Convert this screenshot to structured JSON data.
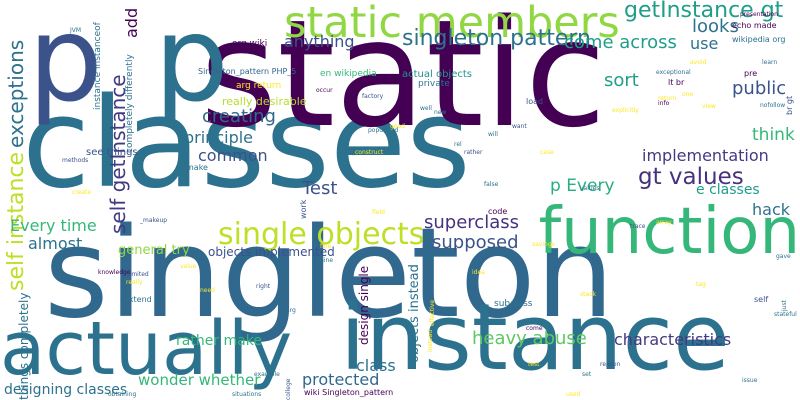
{
  "words": [
    {
      "text": "classes",
      "color": "#2c728e"
    },
    {
      "text": "singleton",
      "color": "#31688e"
    },
    {
      "text": "static",
      "color": "#440154"
    },
    {
      "text": "p",
      "color": "#3b528b"
    },
    {
      "text": "p",
      "color": "#2c728e"
    },
    {
      "text": "instance",
      "color": "#2c728e"
    },
    {
      "text": "function",
      "color": "#35b779"
    },
    {
      "text": "actually",
      "color": "#2c728e"
    },
    {
      "text": "static members",
      "color": "#90d743"
    },
    {
      "text": "single objects",
      "color": "#bddf26"
    },
    {
      "text": "self instance",
      "color": "#bddf26"
    },
    {
      "text": "gt values",
      "color": "#46327e"
    },
    {
      "text": "exceptions",
      "color": "#2c728e"
    },
    {
      "text": "self getInstance",
      "color": "#443a83"
    },
    {
      "text": "getInstance gt",
      "color": "#1f9e89"
    },
    {
      "text": "singleton pattern",
      "color": "#2c728e"
    },
    {
      "text": "come across",
      "color": "#1f9e89"
    },
    {
      "text": "looks",
      "color": "#2c728e"
    },
    {
      "text": "add",
      "color": "#440154"
    },
    {
      "text": "use",
      "color": "#2c728e"
    },
    {
      "text": "anything",
      "color": "#3b528b"
    },
    {
      "text": "creating",
      "color": "#31688e"
    },
    {
      "text": "principle",
      "color": "#2c728e"
    },
    {
      "text": "public",
      "color": "#3b528b"
    },
    {
      "text": "sort",
      "color": "#1f9e89"
    },
    {
      "text": "think",
      "color": "#35b779"
    },
    {
      "text": "common",
      "color": "#3b528b"
    },
    {
      "text": "implementation",
      "color": "#443a83"
    },
    {
      "text": "Test",
      "color": "#3b528b"
    },
    {
      "text": "p Every",
      "color": "#27ad81"
    },
    {
      "text": "e classes",
      "color": "#1f9e89"
    },
    {
      "text": "hack",
      "color": "#2c728e"
    },
    {
      "text": "Every time",
      "color": "#35b779"
    },
    {
      "text": "superclass",
      "color": "#46327e"
    },
    {
      "text": "supposed",
      "color": "#3b528b"
    },
    {
      "text": "almost",
      "color": "#2c728e"
    },
    {
      "text": "characteristics",
      "color": "#443a83"
    },
    {
      "text": "heavy abuse",
      "color": "#5ec962"
    },
    {
      "text": "class",
      "color": "#2c728e"
    },
    {
      "text": "protected",
      "color": "#31688e"
    },
    {
      "text": "rather make",
      "color": "#35b779"
    },
    {
      "text": "wonder whether",
      "color": "#35b779"
    },
    {
      "text": "designing classes",
      "color": "#2c728e"
    },
    {
      "text": "objects instead",
      "color": "#2c728e"
    },
    {
      "text": "design single",
      "color": "#440154"
    },
    {
      "text": "general try",
      "color": "#90d743"
    },
    {
      "text": "objects implemented",
      "color": "#3b528b"
    },
    {
      "text": "things completely",
      "color": "#2c728e"
    },
    {
      "text": "really desirable",
      "color": "#b5de2b"
    },
    {
      "text": "actual objects",
      "color": "#21918c"
    },
    {
      "text": "instance instanceof",
      "color": "#2c728e"
    },
    {
      "text": "completely differently",
      "color": "#2c728e"
    },
    {
      "text": "see things",
      "color": "#3b528b"
    },
    {
      "text": "subclass",
      "color": "#2c728e"
    },
    {
      "text": "org wiki",
      "color": "#440154"
    },
    {
      "text": "en wikipedia",
      "color": "#35b779"
    },
    {
      "text": "wikipedia org",
      "color": "#2c728e"
    },
    {
      "text": "echo made",
      "color": "#440154"
    },
    {
      "text": "Singleton_pattern PHP_5",
      "color": "#31688e"
    },
    {
      "text": "presentation",
      "color": "#440154"
    },
    {
      "text": "private",
      "color": "#2c728e"
    },
    {
      "text": "wiki Singleton_pattern",
      "color": "#440154"
    },
    {
      "text": "lt br",
      "color": "#440154"
    },
    {
      "text": "br gt",
      "color": "#3b528b"
    },
    {
      "text": "arg return",
      "color": "#fde725"
    },
    {
      "text": "code",
      "color": "#440154"
    },
    {
      "text": "load",
      "color": "#3b528b"
    },
    {
      "text": "pre",
      "color": "#440154"
    },
    {
      "text": "info",
      "color": "#440154"
    },
    {
      "text": "make",
      "color": "#2c728e"
    },
    {
      "text": "work",
      "color": "#3b528b"
    },
    {
      "text": "extend",
      "color": "#2c728e"
    },
    {
      "text": "self",
      "color": "#3b528b"
    },
    {
      "text": "gave",
      "color": "#2c728e"
    },
    {
      "text": "set",
      "color": "#2c728e"
    },
    {
      "text": "come",
      "color": "#440154"
    },
    {
      "text": "JVM",
      "color": "#2c728e"
    },
    {
      "text": "factory",
      "color": "#3b528b"
    },
    {
      "text": "populated",
      "color": "#2c728e"
    },
    {
      "text": "methods",
      "color": "#3b528b"
    },
    {
      "text": "knowledge",
      "color": "#440154"
    },
    {
      "text": "limited",
      "color": "#3b528b"
    },
    {
      "text": "situations",
      "color": "#2c728e"
    },
    {
      "text": "example",
      "color": "#2c728e"
    },
    {
      "text": "exceptional",
      "color": "#2c728e"
    },
    {
      "text": "nofollow",
      "color": "#2c728e"
    },
    {
      "text": "learn",
      "color": "#2c728e"
    },
    {
      "text": "stateful",
      "color": "#2c728e"
    },
    {
      "text": "reason",
      "color": "#3b528b"
    },
    {
      "text": "issue",
      "color": "#2c728e"
    },
    {
      "text": "values",
      "color": "#2c728e"
    },
    {
      "text": "trace",
      "color": "#3b528b"
    },
    {
      "text": "false",
      "color": "#2c728e"
    },
    {
      "text": "rather",
      "color": "#3b528b"
    },
    {
      "text": "rel",
      "color": "#2c728e"
    },
    {
      "text": "new",
      "color": "#2c728e"
    },
    {
      "text": "well",
      "color": "#2c728e"
    },
    {
      "text": "mine",
      "color": "#2c728e"
    },
    {
      "text": "right",
      "color": "#3b528b"
    },
    {
      "text": "arg",
      "color": "#2c728e"
    },
    {
      "text": "occur",
      "color": "#440154"
    },
    {
      "text": "want",
      "color": "#3b528b"
    },
    {
      "text": "will",
      "color": "#2c728e"
    },
    {
      "text": "just",
      "color": "#2c728e"
    },
    {
      "text": "obtaining",
      "color": "#2c728e"
    },
    {
      "text": "college",
      "color": "#3b528b"
    },
    {
      "text": "_makeup",
      "color": "#3b528b"
    },
    {
      "text": "_construct",
      "color": "#fde725"
    },
    {
      "text": "explicitly",
      "color": "#fde725"
    },
    {
      "text": "create",
      "color": "#fde725"
    },
    {
      "text": "savings",
      "color": "#fde725"
    },
    {
      "text": "array",
      "color": "#fde725"
    },
    {
      "text": "value",
      "color": "#fde725"
    },
    {
      "text": "really",
      "color": "#fde725"
    },
    {
      "text": "instead",
      "color": "#fde725"
    },
    {
      "text": "effective",
      "color": "#fde725"
    },
    {
      "text": "stack",
      "color": "#fde725"
    },
    {
      "text": "test",
      "color": "#fde725"
    },
    {
      "text": "field",
      "color": "#fde725"
    },
    {
      "text": "fine",
      "color": "#fde725"
    },
    {
      "text": "good",
      "color": "#fde725"
    },
    {
      "text": "case",
      "color": "#fde725"
    },
    {
      "text": "tag",
      "color": "#fde725"
    },
    {
      "text": "one",
      "color": "#fde725"
    },
    {
      "text": "view",
      "color": "#fde725"
    },
    {
      "text": "idea",
      "color": "#fde725"
    },
    {
      "text": "return",
      "color": "#fde725"
    },
    {
      "text": "need",
      "color": "#fde725"
    },
    {
      "text": "used",
      "color": "#fde725"
    },
    {
      "text": "avoid",
      "color": "#fde725"
    }
  ]
}
